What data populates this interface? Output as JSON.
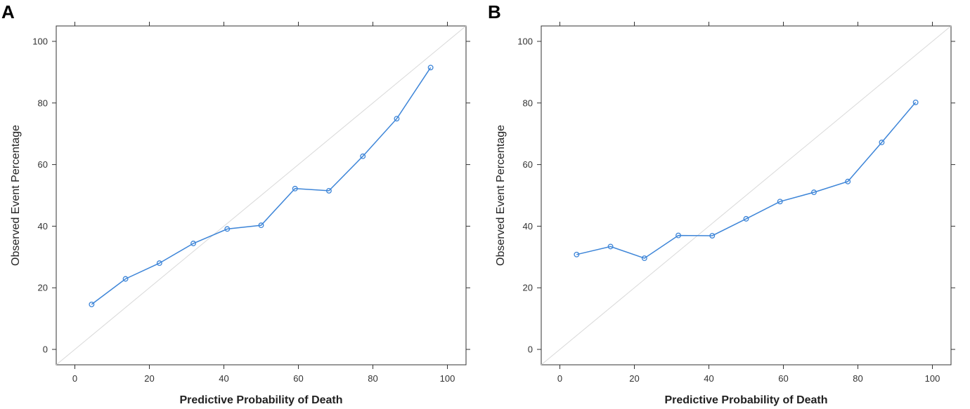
{
  "panels": [
    {
      "letter": "A"
    },
    {
      "letter": "B"
    }
  ],
  "chart_data": [
    {
      "type": "line",
      "panel": "A",
      "title": "",
      "xlabel": "Predictive Probability of Death",
      "ylabel": "Observed Event Percentage",
      "xlim": [
        -5,
        105
      ],
      "ylim": [
        -5,
        105
      ],
      "xticks": [
        0,
        20,
        40,
        60,
        80,
        100
      ],
      "yticks": [
        0,
        20,
        40,
        60,
        80,
        100
      ],
      "reference_line": "y = x",
      "series": [
        {
          "name": "calibration",
          "x": [
            4.5,
            13.6,
            22.7,
            31.8,
            40.9,
            50,
            59.1,
            68.2,
            77.3,
            86.4,
            95.5
          ],
          "y": [
            14.6,
            22.9,
            28.0,
            34.4,
            39.1,
            40.3,
            52.2,
            51.5,
            62.7,
            74.9,
            91.5
          ]
        }
      ]
    },
    {
      "type": "line",
      "panel": "B",
      "title": "",
      "xlabel": "Predictive Probability of Death",
      "ylabel": "Observed Event Percentage",
      "xlim": [
        -5,
        105
      ],
      "ylim": [
        -5,
        105
      ],
      "xticks": [
        0,
        20,
        40,
        60,
        80,
        100
      ],
      "yticks": [
        0,
        20,
        40,
        60,
        80,
        100
      ],
      "reference_line": "y = x",
      "series": [
        {
          "name": "calibration",
          "x": [
            4.5,
            13.6,
            22.7,
            31.8,
            40.9,
            50,
            59.1,
            68.2,
            77.3,
            86.4,
            95.5
          ],
          "y": [
            30.8,
            33.4,
            29.6,
            37.0,
            36.9,
            42.4,
            48.0,
            51.0,
            54.5,
            67.2,
            80.2
          ]
        }
      ]
    }
  ]
}
